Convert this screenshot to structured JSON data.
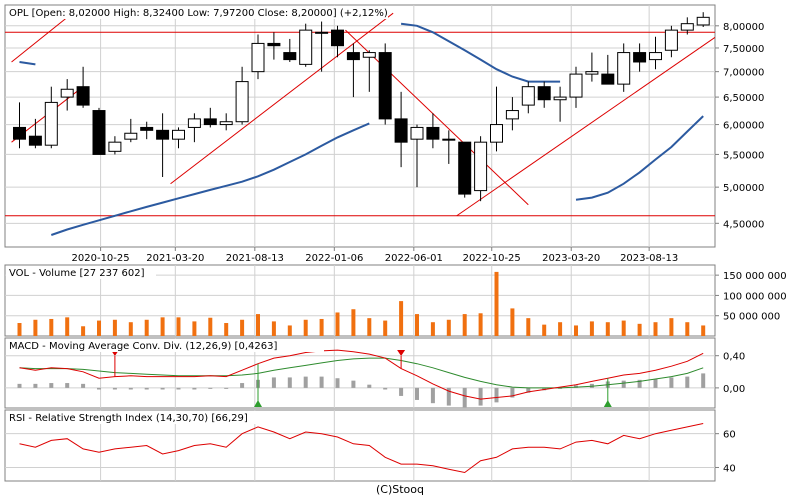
{
  "footer": "(C)Stooq",
  "colors": {
    "bull_body": "#ffffff",
    "bear_body": "#000000",
    "trendline": "#dd0000",
    "ma_line": "#2c5aa0",
    "volume_bar": "#f07010",
    "macd_line": "#dd0000",
    "signal_line": "#2e8b2e",
    "histogram": "#a0a0a0",
    "rsi_line": "#dd0000",
    "grid": "#d0d0d0",
    "marker_up": "#2e9e2e",
    "marker_down": "#dd0000"
  },
  "chart_data": [
    {
      "type": "candlestick",
      "title": "OPL [Open: 8,02000  High: 8,32400  Low: 7,97200  Close: 8,20000] (+2,12%)",
      "x_tick_labels": [
        "2020-10-25",
        "2021-03-20",
        "2021-08-13",
        "2022-01-06",
        "2022-06-01",
        "2022-10-25",
        "2023-03-20",
        "2023-08-13"
      ],
      "y_scale": "log",
      "y_ticks": [
        "4,50000",
        "5,00000",
        "5,50000",
        "6,00000",
        "6,50000",
        "7,00000",
        "7,50000",
        "8,00000"
      ],
      "y_tick_values": [
        4.5,
        5.0,
        5.5,
        6.0,
        6.5,
        7.0,
        7.5,
        8.0
      ],
      "ylim": [
        4.2,
        8.5
      ],
      "candles": [
        {
          "o": 5.95,
          "h": 6.4,
          "l": 5.6,
          "c": 5.75
        },
        {
          "o": 5.8,
          "h": 6.1,
          "l": 5.6,
          "c": 5.65
        },
        {
          "o": 5.65,
          "h": 6.7,
          "l": 5.6,
          "c": 6.4
        },
        {
          "o": 6.5,
          "h": 6.85,
          "l": 6.25,
          "c": 6.65
        },
        {
          "o": 6.7,
          "h": 7.1,
          "l": 6.3,
          "c": 6.35
        },
        {
          "o": 6.25,
          "h": 6.3,
          "l": 5.5,
          "c": 5.5
        },
        {
          "o": 5.55,
          "h": 5.8,
          "l": 5.5,
          "c": 5.7
        },
        {
          "o": 5.75,
          "h": 6.1,
          "l": 5.7,
          "c": 5.85
        },
        {
          "o": 5.95,
          "h": 6.05,
          "l": 5.75,
          "c": 5.9
        },
        {
          "o": 5.9,
          "h": 6.2,
          "l": 5.15,
          "c": 5.75
        },
        {
          "o": 5.75,
          "h": 5.95,
          "l": 5.6,
          "c": 5.9
        },
        {
          "o": 5.95,
          "h": 6.2,
          "l": 5.7,
          "c": 6.1
        },
        {
          "o": 6.1,
          "h": 6.3,
          "l": 5.95,
          "c": 6.0
        },
        {
          "o": 6.0,
          "h": 6.2,
          "l": 5.9,
          "c": 6.05
        },
        {
          "o": 6.05,
          "h": 7.1,
          "l": 6.0,
          "c": 6.8
        },
        {
          "o": 7.0,
          "h": 7.8,
          "l": 6.85,
          "c": 7.6
        },
        {
          "o": 7.6,
          "h": 7.85,
          "l": 7.25,
          "c": 7.55
        },
        {
          "o": 7.4,
          "h": 7.7,
          "l": 7.2,
          "c": 7.25
        },
        {
          "o": 7.15,
          "h": 8.05,
          "l": 7.1,
          "c": 7.9
        },
        {
          "o": 7.85,
          "h": 8.1,
          "l": 7.0,
          "c": 7.85
        },
        {
          "o": 7.9,
          "h": 8.0,
          "l": 7.3,
          "c": 7.55
        },
        {
          "o": 7.4,
          "h": 7.6,
          "l": 6.5,
          "c": 7.25
        },
        {
          "o": 7.3,
          "h": 7.45,
          "l": 6.6,
          "c": 7.4
        },
        {
          "o": 7.4,
          "h": 7.6,
          "l": 6.0,
          "c": 6.1
        },
        {
          "o": 6.1,
          "h": 6.6,
          "l": 5.3,
          "c": 5.7
        },
        {
          "o": 5.75,
          "h": 6.0,
          "l": 5.0,
          "c": 5.95
        },
        {
          "o": 5.95,
          "h": 6.2,
          "l": 5.6,
          "c": 5.75
        },
        {
          "o": 5.75,
          "h": 5.9,
          "l": 5.35,
          "c": 5.75
        },
        {
          "o": 5.7,
          "h": 5.7,
          "l": 4.85,
          "c": 4.9
        },
        {
          "o": 4.95,
          "h": 5.8,
          "l": 4.8,
          "c": 5.7
        },
        {
          "o": 5.7,
          "h": 6.7,
          "l": 5.55,
          "c": 6.0
        },
        {
          "o": 6.1,
          "h": 6.5,
          "l": 5.9,
          "c": 6.25
        },
        {
          "o": 6.35,
          "h": 6.8,
          "l": 6.2,
          "c": 6.7
        },
        {
          "o": 6.7,
          "h": 6.8,
          "l": 6.3,
          "c": 6.45
        },
        {
          "o": 6.45,
          "h": 6.7,
          "l": 6.05,
          "c": 6.5
        },
        {
          "o": 6.5,
          "h": 7.1,
          "l": 6.3,
          "c": 6.95
        },
        {
          "o": 6.95,
          "h": 7.4,
          "l": 6.8,
          "c": 7.0
        },
        {
          "o": 6.95,
          "h": 7.35,
          "l": 6.75,
          "c": 6.75
        },
        {
          "o": 6.75,
          "h": 7.6,
          "l": 6.6,
          "c": 7.4
        },
        {
          "o": 7.4,
          "h": 7.6,
          "l": 7.0,
          "c": 7.2
        },
        {
          "o": 7.25,
          "h": 7.75,
          "l": 7.05,
          "c": 7.4
        },
        {
          "o": 7.45,
          "h": 8.0,
          "l": 7.3,
          "c": 7.9
        },
        {
          "o": 7.9,
          "h": 8.2,
          "l": 7.8,
          "c": 8.05
        },
        {
          "o": 8.02,
          "h": 8.324,
          "l": 7.972,
          "c": 8.2
        }
      ],
      "moving_average": [
        {
          "from": 0,
          "to": 1,
          "values": [
            7.2,
            7.15
          ]
        },
        {
          "from": 2,
          "to": 22,
          "values": [
            4.35,
            4.42,
            4.48,
            4.54,
            4.6,
            4.66,
            4.72,
            4.78,
            4.84,
            4.9,
            4.96,
            5.02,
            5.08,
            5.16,
            5.26,
            5.38,
            5.5,
            5.64,
            5.78,
            5.9,
            6.02
          ]
        },
        {
          "from": 24,
          "to": 34,
          "values": [
            8.05,
            8.0,
            7.85,
            7.65,
            7.45,
            7.25,
            7.05,
            6.9,
            6.8,
            6.8,
            6.8
          ]
        },
        {
          "from": 35,
          "to": 43,
          "values": [
            4.82,
            4.85,
            4.92,
            5.05,
            5.22,
            5.42,
            5.62,
            5.88,
            6.15
          ]
        }
      ],
      "horizontal_lines": [
        7.85,
        4.6
      ],
      "trendlines": [
        {
          "i1": -0.5,
          "p1": 5.7,
          "i2": 4.0,
          "p2": 6.7
        },
        {
          "i1": -0.5,
          "p1": 7.2,
          "i2": 3.0,
          "p2": 8.2
        },
        {
          "i1": 9.5,
          "p1": 5.05,
          "i2": 23.5,
          "p2": 8.3
        },
        {
          "i1": 20.5,
          "p1": 7.9,
          "i2": 32.0,
          "p2": 4.75
        },
        {
          "i1": 27.5,
          "p1": 4.6,
          "i2": 44.6,
          "p2": 7.95
        }
      ]
    },
    {
      "type": "bar",
      "title": "VOL - Volume [27 237 602]",
      "y_ticks": [
        "50 000 000",
        "100 000 000",
        "150 000 000"
      ],
      "y_tick_values": [
        50000000,
        100000000,
        150000000
      ],
      "ylim": [
        0,
        175000000
      ],
      "values": [
        32000000,
        40000000,
        42000000,
        46000000,
        24000000,
        38000000,
        40000000,
        34000000,
        40000000,
        46000000,
        46000000,
        36000000,
        45000000,
        32000000,
        40000000,
        54000000,
        36000000,
        26000000,
        40000000,
        42000000,
        58000000,
        66000000,
        44000000,
        38000000,
        86000000,
        54000000,
        34000000,
        40000000,
        54000000,
        56000000,
        158000000,
        68000000,
        44000000,
        28000000,
        34000000,
        26000000,
        36000000,
        34000000,
        38000000,
        30000000,
        34000000,
        44000000,
        34000000,
        26000000
      ]
    },
    {
      "type": "line",
      "title": "MACD - Moving Average Conv. Div. (12,26,9) [0,4263]",
      "y_ticks": [
        "0,00",
        "0,40"
      ],
      "y_tick_values": [
        0,
        0.4
      ],
      "ylim": [
        -0.25,
        0.62
      ],
      "macd": [
        0.25,
        0.22,
        0.25,
        0.24,
        0.2,
        0.12,
        0.14,
        0.15,
        0.14,
        0.14,
        0.14,
        0.14,
        0.15,
        0.14,
        0.22,
        0.3,
        0.37,
        0.4,
        0.44,
        0.46,
        0.47,
        0.45,
        0.42,
        0.37,
        0.24,
        0.15,
        0.05,
        -0.04,
        -0.1,
        -0.14,
        -0.12,
        -0.1,
        -0.05,
        -0.02,
        0.01,
        0.04,
        0.08,
        0.12,
        0.16,
        0.18,
        0.22,
        0.27,
        0.33,
        0.43
      ],
      "signal": [
        0.25,
        0.24,
        0.24,
        0.24,
        0.23,
        0.21,
        0.19,
        0.18,
        0.17,
        0.16,
        0.15,
        0.15,
        0.15,
        0.15,
        0.16,
        0.18,
        0.22,
        0.25,
        0.28,
        0.31,
        0.34,
        0.36,
        0.37,
        0.37,
        0.34,
        0.3,
        0.25,
        0.19,
        0.13,
        0.08,
        0.04,
        0.01,
        0.0,
        0.0,
        0.0,
        0.01,
        0.02,
        0.04,
        0.06,
        0.08,
        0.11,
        0.14,
        0.18,
        0.25
      ],
      "histogram": [
        0.05,
        0.05,
        0.06,
        0.06,
        0.05,
        -0.02,
        -0.02,
        -0.02,
        -0.02,
        -0.02,
        -0.02,
        -0.02,
        0.0,
        0.0,
        0.06,
        0.1,
        0.13,
        0.13,
        0.14,
        0.14,
        0.12,
        0.09,
        0.04,
        -0.02,
        -0.1,
        -0.15,
        -0.19,
        -0.22,
        -0.24,
        -0.22,
        -0.18,
        -0.12,
        -0.06,
        -0.03,
        0.0,
        0.03,
        0.05,
        0.08,
        0.09,
        0.1,
        0.11,
        0.13,
        0.14,
        0.18
      ],
      "markers": [
        {
          "i": 6,
          "dir": "down"
        },
        {
          "i": 15,
          "dir": "up"
        },
        {
          "i": 24,
          "dir": "down"
        },
        {
          "i": 37,
          "dir": "up"
        }
      ]
    },
    {
      "type": "line",
      "title": "RSI - Relative Strength Index (14,30,70) [66,29]",
      "y_ticks": [
        "40",
        "60"
      ],
      "y_tick_values": [
        40,
        60
      ],
      "ylim": [
        32,
        74
      ],
      "values": [
        54,
        52,
        56,
        57,
        51,
        49,
        51,
        52,
        53,
        48,
        50,
        53,
        54,
        52,
        60,
        64,
        61,
        57,
        61,
        60,
        58,
        54,
        53,
        46,
        42,
        42,
        41,
        39,
        37,
        44,
        46,
        51,
        52,
        52,
        51,
        55,
        56,
        54,
        59,
        57,
        60,
        62,
        64,
        66
      ]
    }
  ]
}
